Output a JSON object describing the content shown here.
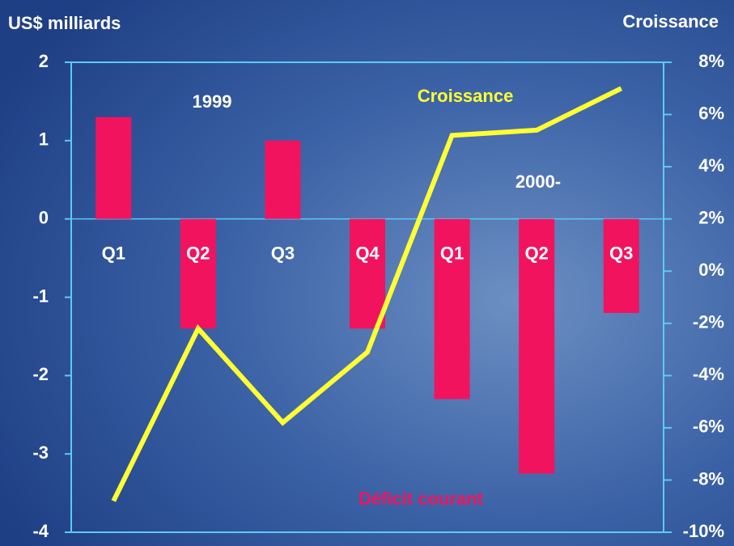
{
  "chart_data": {
    "type": "bar_line",
    "y_label": "US$ milliards",
    "y2_label": "Croissance",
    "categories": [
      "Q1",
      "Q2",
      "Q3",
      "Q4",
      "Q1",
      "Q2",
      "Q3"
    ],
    "annotations": [
      {
        "text": "1999"
      },
      {
        "text": "2000-"
      }
    ],
    "series": [
      {
        "name": "Déficit courant",
        "type": "bar",
        "axis": "y",
        "color": "#f2135f",
        "values": [
          1.3,
          -1.4,
          1.0,
          -1.4,
          -2.3,
          -3.25,
          -1.2
        ]
      },
      {
        "name": "Croissance",
        "type": "line",
        "axis": "y2",
        "color": "#ffff33",
        "values": [
          -8.8,
          -2.2,
          -5.8,
          -3.1,
          5.2,
          5.4,
          7.0
        ]
      }
    ],
    "ylim": [
      -4,
      2
    ],
    "yticks": [
      2,
      1,
      0,
      -1,
      -2,
      -3,
      -4
    ],
    "y2lim": [
      -10,
      8
    ],
    "y2ticks": [
      {
        "value": 8,
        "label": "8%"
      },
      {
        "value": 6,
        "label": "6%"
      },
      {
        "value": 4,
        "label": "4%"
      },
      {
        "value": 2,
        "label": "2%"
      },
      {
        "value": 0,
        "label": "0%"
      },
      {
        "value": -2,
        "label": "-2%"
      },
      {
        "value": -4,
        "label": "-4%"
      },
      {
        "value": -6,
        "label": "-6%"
      },
      {
        "value": -8,
        "label": "-8%"
      },
      {
        "value": -10,
        "label": "-10%"
      }
    ]
  }
}
